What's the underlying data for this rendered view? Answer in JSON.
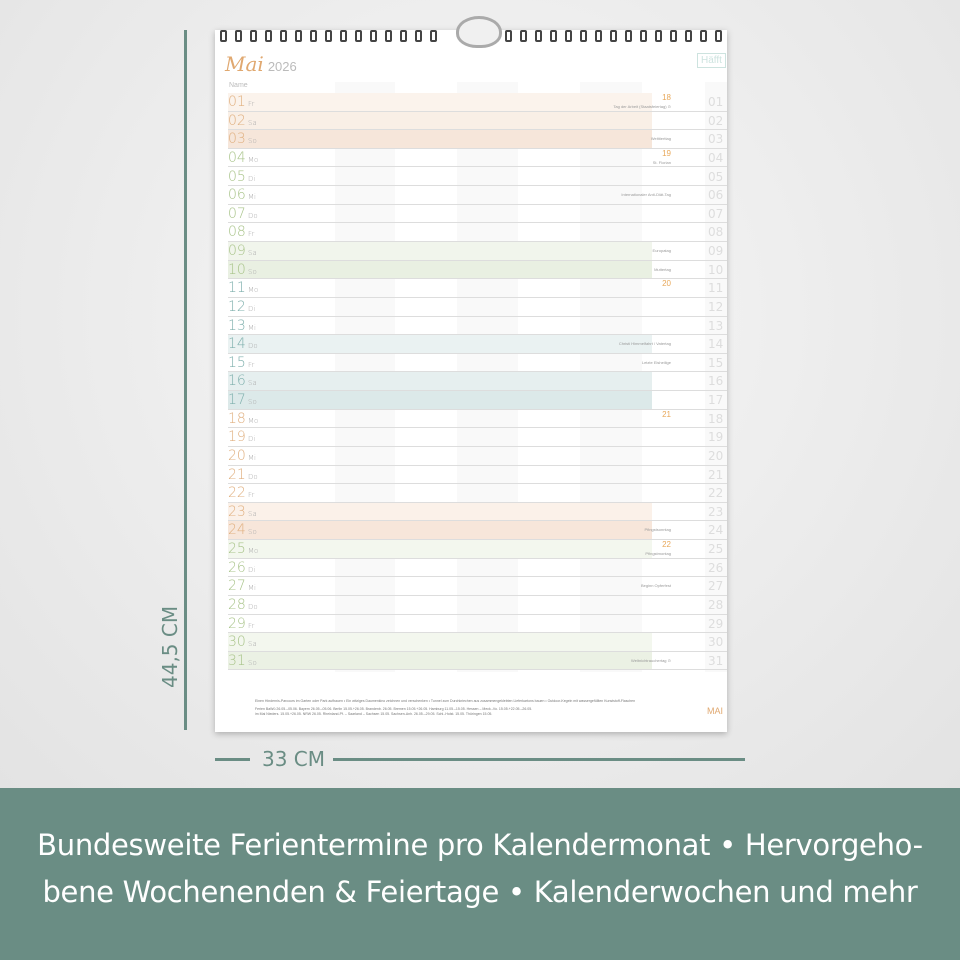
{
  "calendar": {
    "month_script": "Mai",
    "year": "2026",
    "brand": "Häfft",
    "name_label": "Name",
    "footer_month": "MAI",
    "colors": {
      "orange": "#e0b080",
      "green": "#a9c48a",
      "teal": "#7fb0ad"
    },
    "days": [
      {
        "d": "01",
        "w": "Fr",
        "tone": "orange",
        "shade": "#fbf3ec",
        "kw": "18",
        "note": "Tag der Arbeit (Staatsfeiertag) ⊙"
      },
      {
        "d": "02",
        "w": "Sa",
        "tone": "orange",
        "shade": "#f9efe6",
        "note": ""
      },
      {
        "d": "03",
        "w": "So",
        "tone": "orange",
        "shade": "#f6e6da",
        "note": "Welttierttag"
      },
      {
        "d": "04",
        "w": "Mo",
        "tone": "green",
        "kw": "19",
        "note": "St. Florian"
      },
      {
        "d": "05",
        "w": "Di",
        "tone": "green",
        "note": ""
      },
      {
        "d": "06",
        "w": "Mi",
        "tone": "green",
        "note": "Internationaler Anti-Diät-Tag"
      },
      {
        "d": "07",
        "w": "Do",
        "tone": "green",
        "note": ""
      },
      {
        "d": "08",
        "w": "Fr",
        "tone": "green",
        "note": ""
      },
      {
        "d": "09",
        "w": "Sa",
        "tone": "green",
        "shade": "#f1f5ec",
        "note": "Europatag"
      },
      {
        "d": "10",
        "w": "So",
        "tone": "green",
        "shade": "#e9f0e2",
        "note": "Muttertag"
      },
      {
        "d": "11",
        "w": "Mo",
        "tone": "teal",
        "kw": "20",
        "note": ""
      },
      {
        "d": "12",
        "w": "Di",
        "tone": "teal",
        "note": ""
      },
      {
        "d": "13",
        "w": "Mi",
        "tone": "teal",
        "note": ""
      },
      {
        "d": "14",
        "w": "Do",
        "tone": "teal",
        "shade": "#eaf2f2",
        "note": "Christi Himmelfahrt / Vatertag"
      },
      {
        "d": "15",
        "w": "Fr",
        "tone": "teal",
        "note": "Letzte Eisheilige"
      },
      {
        "d": "16",
        "w": "Sa",
        "tone": "teal",
        "shade": "#e6efef",
        "note": ""
      },
      {
        "d": "17",
        "w": "So",
        "tone": "teal",
        "shade": "#dce9e9",
        "note": ""
      },
      {
        "d": "18",
        "w": "Mo",
        "tone": "orange",
        "kw": "21",
        "note": ""
      },
      {
        "d": "19",
        "w": "Di",
        "tone": "orange",
        "note": ""
      },
      {
        "d": "20",
        "w": "Mi",
        "tone": "orange",
        "note": ""
      },
      {
        "d": "21",
        "w": "Do",
        "tone": "orange",
        "note": ""
      },
      {
        "d": "22",
        "w": "Fr",
        "tone": "orange",
        "note": ""
      },
      {
        "d": "23",
        "w": "Sa",
        "tone": "orange",
        "shade": "#fbf1e9",
        "note": ""
      },
      {
        "d": "24",
        "w": "So",
        "tone": "orange",
        "shade": "#f7e6da",
        "note": "Pfingstsonntag"
      },
      {
        "d": "25",
        "w": "Mo",
        "tone": "green",
        "shade": "#f3f7ee",
        "kw": "22",
        "note": "Pfingstmontag"
      },
      {
        "d": "26",
        "w": "Di",
        "tone": "green",
        "note": ""
      },
      {
        "d": "27",
        "w": "Mi",
        "tone": "green",
        "note": "Beginn Opferfest"
      },
      {
        "d": "28",
        "w": "Do",
        "tone": "green",
        "note": ""
      },
      {
        "d": "29",
        "w": "Fr",
        "tone": "green",
        "note": ""
      },
      {
        "d": "30",
        "w": "Sa",
        "tone": "green",
        "shade": "#f3f7ee",
        "note": ""
      },
      {
        "d": "31",
        "w": "So",
        "tone": "green",
        "shade": "#ebf1e4",
        "note": "Weltnichtrauchertag ⊙"
      }
    ],
    "footer_tips": "Einen Hindernis-Parcours im Garten oder Park aufbauen • Ein witziges Daumenkino zeichnen und verschenken • Tunnel zum Durchkriechen aus zusammengeklebten Lieferkartons bauen • Outdoor-Kegeln mit wassergefüllten Kunststoff-Flaschen",
    "footer_holidays_1": "Ferien   BaWü 26.05.–05.06.   Bayern 26.05.–05.06.   Berlin 15.05.+26.05.   Brandenb. 26.05.   Bremen 15.05.+26.05.   Hamburg 11.05.–15.05.   Hessen –   Meck.-Vo. 15.05.+22.05.–26.05.",
    "footer_holidays_2": "im Mai   Nieders. 15.05.+26.05.   NRW 26.05.   Rheinland-Pf. –   Saarland –   Sachsen 15.05.   Sachsen-Anh. 26.05.–29.05.   Schl.-Holst. 15.05.   Thüringen 15.05."
  },
  "dimensions": {
    "height": "44,5 CM",
    "width": "33 CM"
  },
  "caption": {
    "line1": "Bundesweite Ferientermine pro Kalendermonat • Hervorgeho-",
    "line2": "bene Wochenenden & Feiertage • Kalenderwochen und mehr"
  }
}
